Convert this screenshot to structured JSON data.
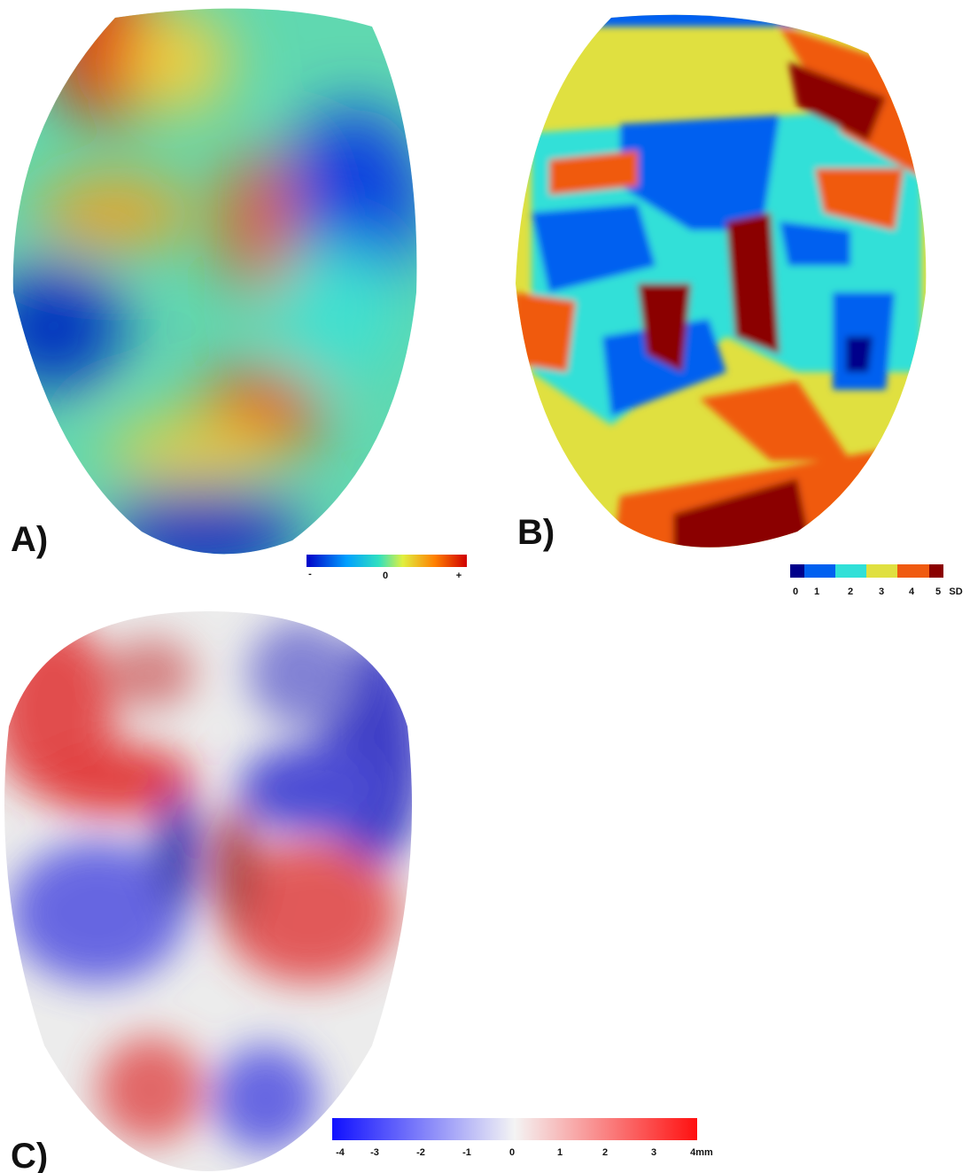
{
  "panels": [
    {
      "label": "A)",
      "scale": {
        "labels": [
          "-",
          "0",
          "+"
        ]
      }
    },
    {
      "label": "B)",
      "scale": {
        "labels": [
          "0",
          "1",
          "2",
          "3",
          "4",
          "5"
        ],
        "unit": "SD"
      }
    },
    {
      "label": "C)",
      "scale": {
        "labels": [
          "-4",
          "-3",
          "-2",
          "-1",
          "0",
          "1",
          "2",
          "3",
          "4mm"
        ]
      }
    }
  ]
}
